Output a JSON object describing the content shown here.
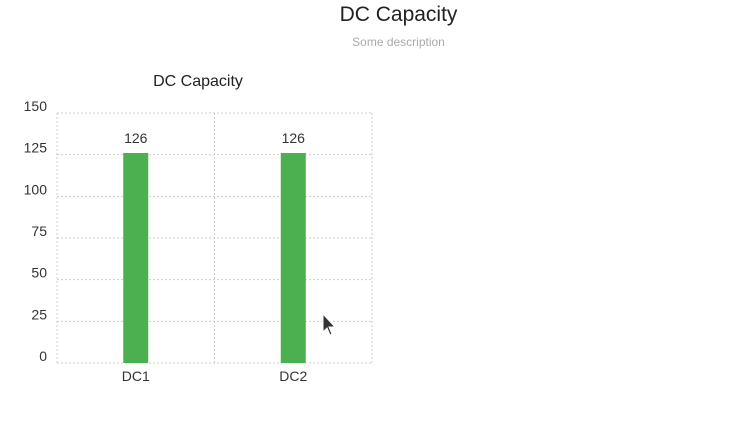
{
  "page": {
    "title": "DC Capacity",
    "subtitle": "Some description"
  },
  "chart_data": {
    "type": "bar",
    "title": "DC Capacity",
    "categories": [
      "DC1",
      "DC2"
    ],
    "values": [
      126,
      126
    ],
    "data_labels": [
      "126",
      "126"
    ],
    "ylim": [
      0,
      150
    ],
    "yticks": [
      0,
      25,
      50,
      75,
      100,
      125,
      150
    ],
    "xlabel": "",
    "ylabel": "",
    "grid": true,
    "bar_color": "#4caf50",
    "grid_color": "#cccccc"
  }
}
